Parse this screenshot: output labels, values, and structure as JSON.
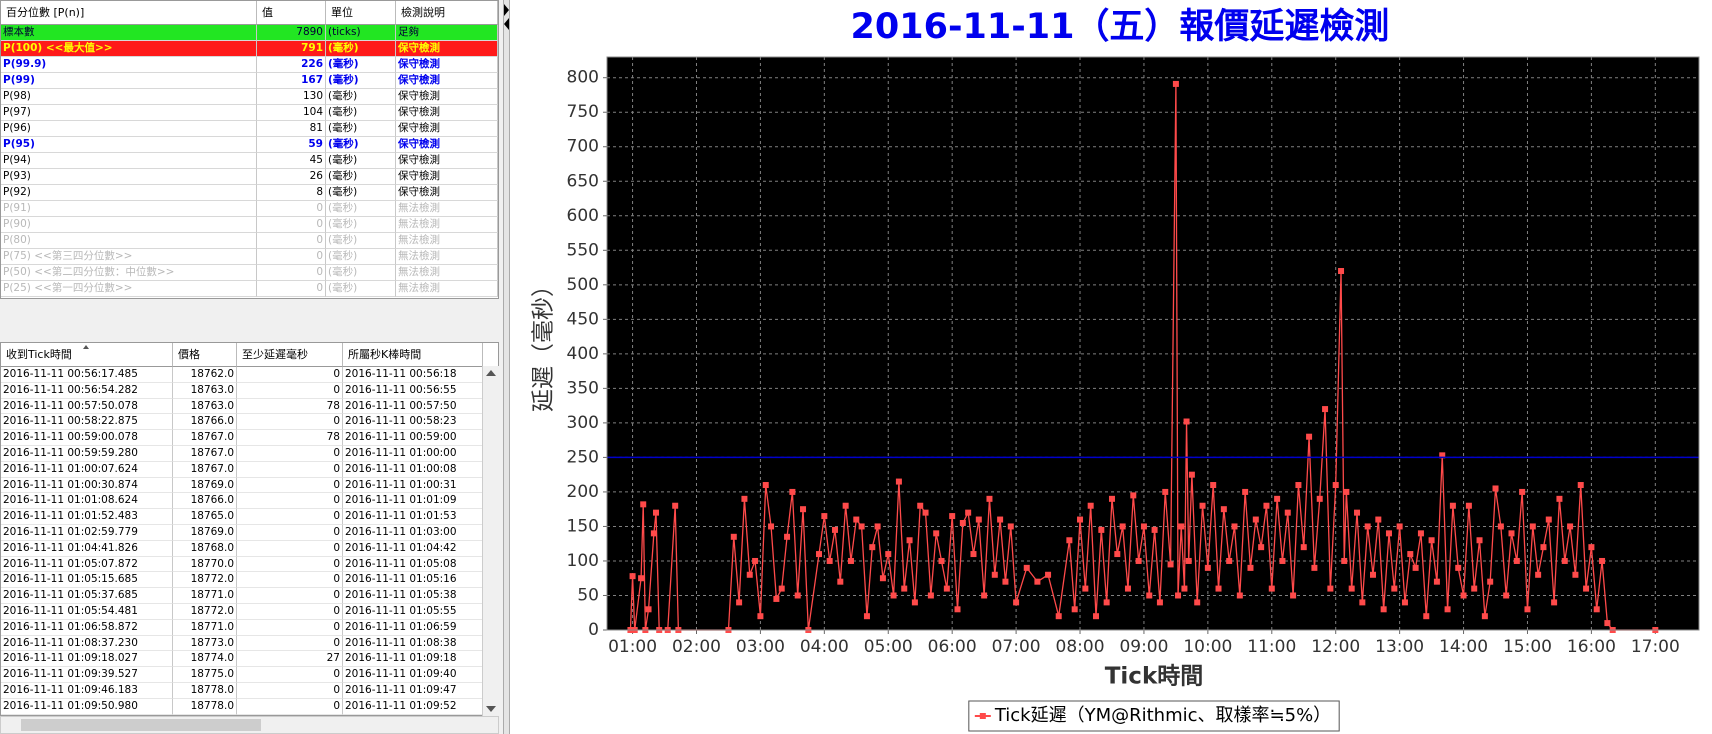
{
  "percentile_table": {
    "headers": [
      "百分位數 [P(n)]",
      "值",
      "單位",
      "檢測說明"
    ],
    "rows": [
      [
        "標本數",
        7890,
        "(ticks)",
        "足夠"
      ],
      [
        "P(100)  <<最大值>>",
        791,
        "(毫秒)",
        "保守檢測"
      ],
      [
        "P(99.9)",
        226,
        "(毫秒)",
        "保守檢測"
      ],
      [
        "P(99)",
        167,
        "(毫秒)",
        "保守檢測"
      ],
      [
        "P(98)",
        130,
        "(毫秒)",
        "保守檢測"
      ],
      [
        "P(97)",
        104,
        "(毫秒)",
        "保守檢測"
      ],
      [
        "P(96)",
        81,
        "(毫秒)",
        "保守檢測"
      ],
      [
        "P(95)",
        59,
        "(毫秒)",
        "保守檢測"
      ],
      [
        "P(94)",
        45,
        "(毫秒)",
        "保守檢測"
      ],
      [
        "P(93)",
        26,
        "(毫秒)",
        "保守檢測"
      ],
      [
        "P(92)",
        8,
        "(毫秒)",
        "保守檢測"
      ],
      [
        "P(91)",
        0,
        "(毫秒)",
        "無法檢測"
      ],
      [
        "P(90)",
        0,
        "(毫秒)",
        "無法檢測"
      ],
      [
        "P(80)",
        0,
        "(毫秒)",
        "無法檢測"
      ],
      [
        "P(75)  <<第三四分位數>>",
        0,
        "(毫秒)",
        "無法檢測"
      ],
      [
        "P(50)  <<第二四分位數：中位數>>",
        0,
        "(毫秒)",
        "無法檢測"
      ],
      [
        "P(25)  <<第一四分位數>>",
        0,
        "(毫秒)",
        "無法檢測"
      ]
    ]
  },
  "tick_table": {
    "headers": [
      "收到Tick時間",
      "價格",
      "至少延遲毫秒",
      "所屬秒K棒時間"
    ],
    "rows": [
      [
        "2016-11-11 00:56:17.485",
        "18762.0",
        0,
        "2016-11-11 00:56:18"
      ],
      [
        "2016-11-11 00:56:54.282",
        "18763.0",
        0,
        "2016-11-11 00:56:55"
      ],
      [
        "2016-11-11 00:57:50.078",
        "18763.0",
        78,
        "2016-11-11 00:57:50"
      ],
      [
        "2016-11-11 00:58:22.875",
        "18766.0",
        0,
        "2016-11-11 00:58:23"
      ],
      [
        "2016-11-11 00:59:00.078",
        "18767.0",
        78,
        "2016-11-11 00:59:00"
      ],
      [
        "2016-11-11 00:59:59.280",
        "18767.0",
        0,
        "2016-11-11 01:00:00"
      ],
      [
        "2016-11-11 01:00:07.624",
        "18767.0",
        0,
        "2016-11-11 01:00:08"
      ],
      [
        "2016-11-11 01:00:30.874",
        "18769.0",
        0,
        "2016-11-11 01:00:31"
      ],
      [
        "2016-11-11 01:01:08.624",
        "18766.0",
        0,
        "2016-11-11 01:01:09"
      ],
      [
        "2016-11-11 01:01:52.483",
        "18765.0",
        0,
        "2016-11-11 01:01:53"
      ],
      [
        "2016-11-11 01:02:59.779",
        "18769.0",
        0,
        "2016-11-11 01:03:00"
      ],
      [
        "2016-11-11 01:04:41.826",
        "18768.0",
        0,
        "2016-11-11 01:04:42"
      ],
      [
        "2016-11-11 01:05:07.872",
        "18770.0",
        0,
        "2016-11-11 01:05:08"
      ],
      [
        "2016-11-11 01:05:15.685",
        "18772.0",
        0,
        "2016-11-11 01:05:16"
      ],
      [
        "2016-11-11 01:05:37.685",
        "18771.0",
        0,
        "2016-11-11 01:05:38"
      ],
      [
        "2016-11-11 01:05:54.481",
        "18772.0",
        0,
        "2016-11-11 01:05:55"
      ],
      [
        "2016-11-11 01:06:58.872",
        "18771.0",
        0,
        "2016-11-11 01:06:59"
      ],
      [
        "2016-11-11 01:08:37.230",
        "18773.0",
        0,
        "2016-11-11 01:08:38"
      ],
      [
        "2016-11-11 01:09:18.027",
        "18774.0",
        27,
        "2016-11-11 01:09:18"
      ],
      [
        "2016-11-11 01:09:39.527",
        "18775.0",
        0,
        "2016-11-11 01:09:40"
      ],
      [
        "2016-11-11 01:09:46.183",
        "18778.0",
        0,
        "2016-11-11 01:09:47"
      ],
      [
        "2016-11-11 01:09:50.980",
        "18778.0",
        0,
        "2016-11-11 01:09:52"
      ]
    ]
  },
  "chart_data": {
    "type": "line",
    "title": "2016-11-11（五）報價延遲檢測",
    "x_label": "Tick時間",
    "y_label": "延遲（毫秒）",
    "xlim": [
      "00:36",
      "17:41"
    ],
    "xticks": [
      "01:00",
      "02:00",
      "03:00",
      "04:00",
      "05:00",
      "06:00",
      "07:00",
      "08:00",
      "09:00",
      "10:00",
      "11:00",
      "12:00",
      "13:00",
      "14:00",
      "15:00",
      "16:00",
      "17:00"
    ],
    "ylim": [
      0,
      830
    ],
    "yticks": [
      0,
      50,
      100,
      150,
      200,
      250,
      300,
      350,
      400,
      450,
      500,
      550,
      600,
      650,
      700,
      750,
      800
    ],
    "grid": true,
    "legend": "bottom",
    "reference_line": {
      "value": 250,
      "color": "#0000cc"
    },
    "x": [
      "00:58",
      "01:00",
      "01:02",
      "01:08",
      "01:10",
      "01:12",
      "01:15",
      "01:20",
      "01:22",
      "01:25",
      "01:33",
      "01:40",
      "01:43",
      "02:30",
      "02:35",
      "02:40",
      "02:45",
      "02:50",
      "02:55",
      "03:00",
      "03:05",
      "03:10",
      "03:15",
      "03:20",
      "03:25",
      "03:30",
      "03:35",
      "03:40",
      "03:45",
      "03:55",
      "04:00",
      "04:05",
      "04:10",
      "04:15",
      "04:20",
      "04:25",
      "04:30",
      "04:35",
      "04:40",
      "04:45",
      "04:50",
      "04:55",
      "05:00",
      "05:05",
      "05:10",
      "05:15",
      "05:20",
      "05:25",
      "05:30",
      "05:35",
      "05:40",
      "05:45",
      "05:50",
      "05:55",
      "06:00",
      "06:05",
      "06:10",
      "06:15",
      "06:20",
      "06:25",
      "06:30",
      "06:35",
      "06:40",
      "06:45",
      "06:50",
      "06:55",
      "07:00",
      "07:10",
      "07:20",
      "07:30",
      "07:40",
      "07:50",
      "07:55",
      "08:00",
      "08:05",
      "08:10",
      "08:15",
      "08:20",
      "08:25",
      "08:30",
      "08:35",
      "08:40",
      "08:45",
      "08:50",
      "08:55",
      "09:00",
      "09:05",
      "09:10",
      "09:15",
      "09:20",
      "09:25",
      "09:30",
      "09:32",
      "09:35",
      "09:38",
      "09:40",
      "09:42",
      "09:45",
      "09:50",
      "09:55",
      "10:00",
      "10:05",
      "10:10",
      "10:15",
      "10:20",
      "10:25",
      "10:30",
      "10:35",
      "10:40",
      "10:45",
      "10:50",
      "10:55",
      "11:00",
      "11:05",
      "11:10",
      "11:15",
      "11:20",
      "11:25",
      "11:30",
      "11:35",
      "11:40",
      "11:45",
      "11:50",
      "11:55",
      "12:00",
      "12:05",
      "12:08",
      "12:10",
      "12:15",
      "12:20",
      "12:25",
      "12:30",
      "12:35",
      "12:40",
      "12:45",
      "12:50",
      "12:55",
      "13:00",
      "13:05",
      "13:10",
      "13:15",
      "13:20",
      "13:25",
      "13:30",
      "13:35",
      "13:40",
      "13:45",
      "13:50",
      "13:55",
      "14:00",
      "14:05",
      "14:10",
      "14:15",
      "14:20",
      "14:25",
      "14:30",
      "14:35",
      "14:40",
      "14:45",
      "14:50",
      "14:55",
      "15:00",
      "15:05",
      "15:10",
      "15:15",
      "15:20",
      "15:25",
      "15:30",
      "15:35",
      "15:40",
      "15:45",
      "15:50",
      "15:55",
      "16:00",
      "16:05",
      "16:10",
      "16:15",
      "16:20",
      "17:00"
    ],
    "series": [
      {
        "name": "Tick延遲（YM@Rithmic、取樣率≒5%）",
        "color": "#ff4a4a",
        "values": [
          0,
          78,
          0,
          75,
          182,
          0,
          30,
          140,
          170,
          0,
          0,
          180,
          0,
          0,
          135,
          40,
          190,
          80,
          100,
          20,
          210,
          150,
          45,
          60,
          135,
          200,
          50,
          175,
          0,
          110,
          165,
          100,
          145,
          70,
          180,
          100,
          160,
          150,
          20,
          120,
          150,
          75,
          110,
          50,
          215,
          60,
          130,
          40,
          180,
          170,
          50,
          140,
          100,
          60,
          165,
          30,
          155,
          170,
          110,
          160,
          50,
          190,
          80,
          160,
          70,
          150,
          40,
          90,
          70,
          80,
          20,
          130,
          30,
          160,
          60,
          180,
          20,
          145,
          40,
          190,
          110,
          150,
          60,
          195,
          100,
          150,
          50,
          145,
          40,
          200,
          95,
          791,
          50,
          150,
          60,
          302,
          100,
          225,
          40,
          180,
          90,
          210,
          60,
          175,
          100,
          150,
          50,
          200,
          90,
          160,
          120,
          180,
          60,
          190,
          100,
          170,
          50,
          210,
          120,
          280,
          90,
          190,
          320,
          60,
          210,
          520,
          100,
          200,
          60,
          170,
          40,
          150,
          80,
          160,
          30,
          140,
          60,
          150,
          40,
          110,
          90,
          140,
          20,
          130,
          70,
          253,
          30,
          180,
          90,
          50,
          180,
          60,
          130,
          20,
          70,
          205,
          150,
          50,
          140,
          100,
          200,
          30,
          150,
          80,
          120,
          160,
          40,
          190,
          100,
          150,
          80,
          210,
          60,
          120,
          30,
          100,
          10,
          0,
          0
        ]
      }
    ]
  }
}
